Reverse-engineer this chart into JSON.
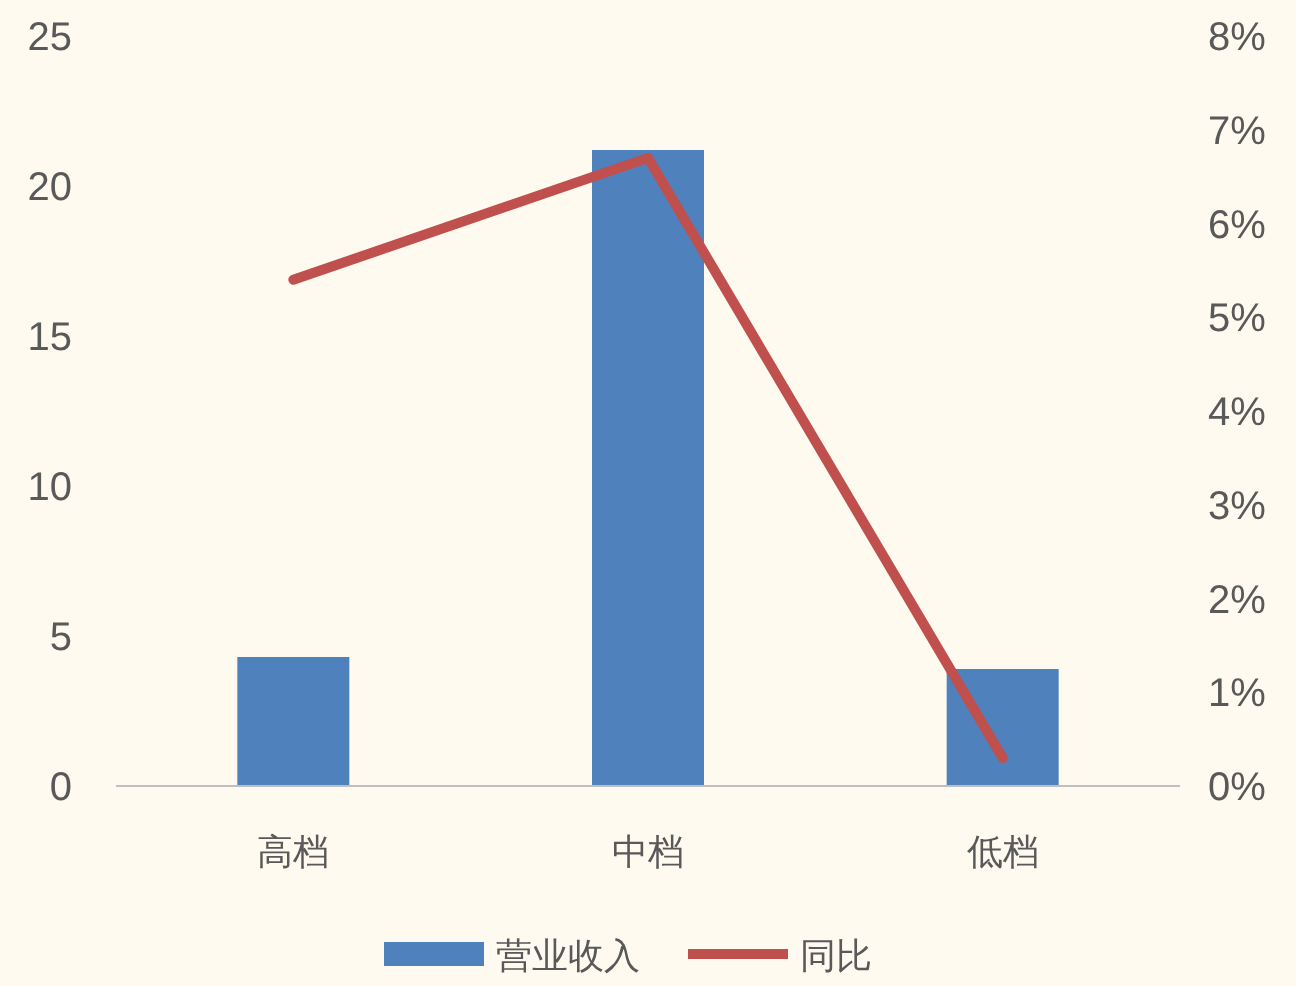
{
  "chart_data": {
    "type": "bar",
    "categories": [
      "高档",
      "中档",
      "低档"
    ],
    "series": [
      {
        "name": "营业收入",
        "color": "#4f81bd",
        "values": [
          4.3,
          21.2,
          3.9
        ]
      },
      {
        "name": "同比",
        "type": "line",
        "axis": "y2",
        "color": "#c0504d",
        "values": [
          5.4,
          6.7,
          0.3
        ]
      }
    ],
    "ylim": [
      0,
      25
    ],
    "yticks": [
      0,
      5,
      10,
      15,
      20,
      25
    ],
    "y2lim": [
      0,
      8
    ],
    "y2ticks": [
      {
        "value": 0,
        "label": "0%"
      },
      {
        "value": 1,
        "label": "1%"
      },
      {
        "value": 2,
        "label": "2%"
      },
      {
        "value": 3,
        "label": "3%"
      },
      {
        "value": 4,
        "label": "4%"
      },
      {
        "value": 5,
        "label": "5%"
      },
      {
        "value": 6,
        "label": "6%"
      },
      {
        "value": 7,
        "label": "7%"
      },
      {
        "value": 8,
        "label": "8%"
      }
    ],
    "grid": false,
    "legend": "bottom",
    "marker": "none"
  }
}
